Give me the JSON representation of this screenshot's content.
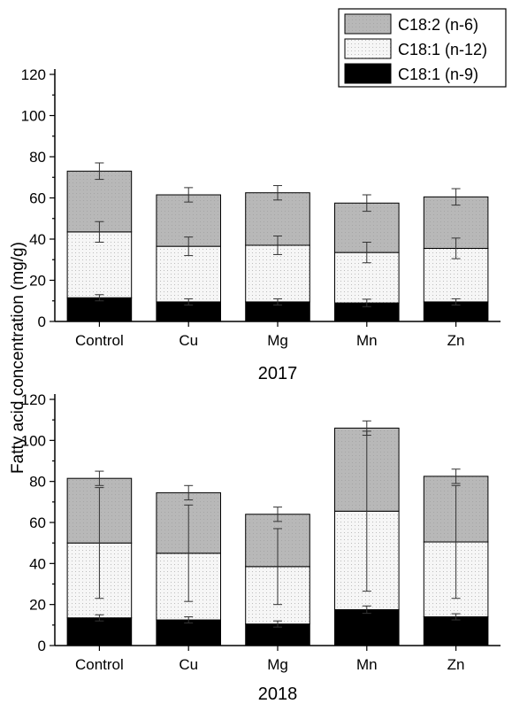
{
  "shared_ylabel": "Fatty acid concentration (mg/g)",
  "legend": [
    {
      "name": "C18:2 (n-6)",
      "color": "#b5b5b5",
      "pattern": "solid-gray"
    },
    {
      "name": "C18:1 (n-12)",
      "color": "#f4f4f4",
      "pattern": "dotted-white"
    },
    {
      "name": "C18:1 (n-9)",
      "color": "#000000",
      "pattern": "solid-black"
    }
  ],
  "chart_data": [
    {
      "type": "bar",
      "stacked": true,
      "title": "",
      "xlabel": "2017",
      "ylabel": "Fatty acid concentration (mg/g)",
      "ylim": [
        0,
        120
      ],
      "yticks": [
        "0",
        "20",
        "40",
        "60",
        "80",
        "100",
        "120"
      ],
      "categories": [
        "Control",
        "Cu",
        "Mg",
        "Mn",
        "Zn"
      ],
      "series": [
        {
          "name": "C18:1 (n-9)",
          "values": [
            11.5,
            9.5,
            9.5,
            9.0,
            9.5
          ],
          "error": [
            1.5,
            1.5,
            1.5,
            1.8,
            1.5
          ]
        },
        {
          "name": "C18:1 (n-12)",
          "values": [
            32.0,
            27.0,
            27.5,
            24.5,
            26.0
          ],
          "error": [
            5.0,
            4.5,
            4.5,
            5.0,
            5.0
          ]
        },
        {
          "name": "C18:2 (n-6)",
          "values": [
            29.5,
            25.0,
            25.5,
            24.0,
            25.0
          ],
          "error": [
            4.0,
            3.5,
            3.5,
            4.0,
            4.0
          ]
        }
      ]
    },
    {
      "type": "bar",
      "stacked": true,
      "title": "",
      "xlabel": "2018",
      "ylabel": "Fatty acid concentration (mg/g)",
      "ylim": [
        0,
        120
      ],
      "yticks": [
        "0",
        "20",
        "40",
        "60",
        "80",
        "100",
        "120"
      ],
      "categories": [
        "Control",
        "Cu",
        "Mg",
        "Mn",
        "Zn"
      ],
      "series": [
        {
          "name": "C18:1 (n-9)",
          "values": [
            13.5,
            12.5,
            10.5,
            17.5,
            14.0
          ],
          "error": [
            1.5,
            1.5,
            1.5,
            1.8,
            1.5
          ]
        },
        {
          "name": "C18:1 (n-12)",
          "values": [
            36.5,
            32.5,
            28.0,
            48.0,
            36.5
          ],
          "error": [
            27.0,
            23.5,
            18.5,
            39.0,
            27.5
          ]
        },
        {
          "name": "C18:2 (n-6)",
          "values": [
            31.5,
            29.5,
            25.5,
            40.5,
            32.0
          ],
          "error": [
            3.5,
            3.5,
            3.5,
            3.5,
            3.5
          ]
        }
      ]
    }
  ]
}
